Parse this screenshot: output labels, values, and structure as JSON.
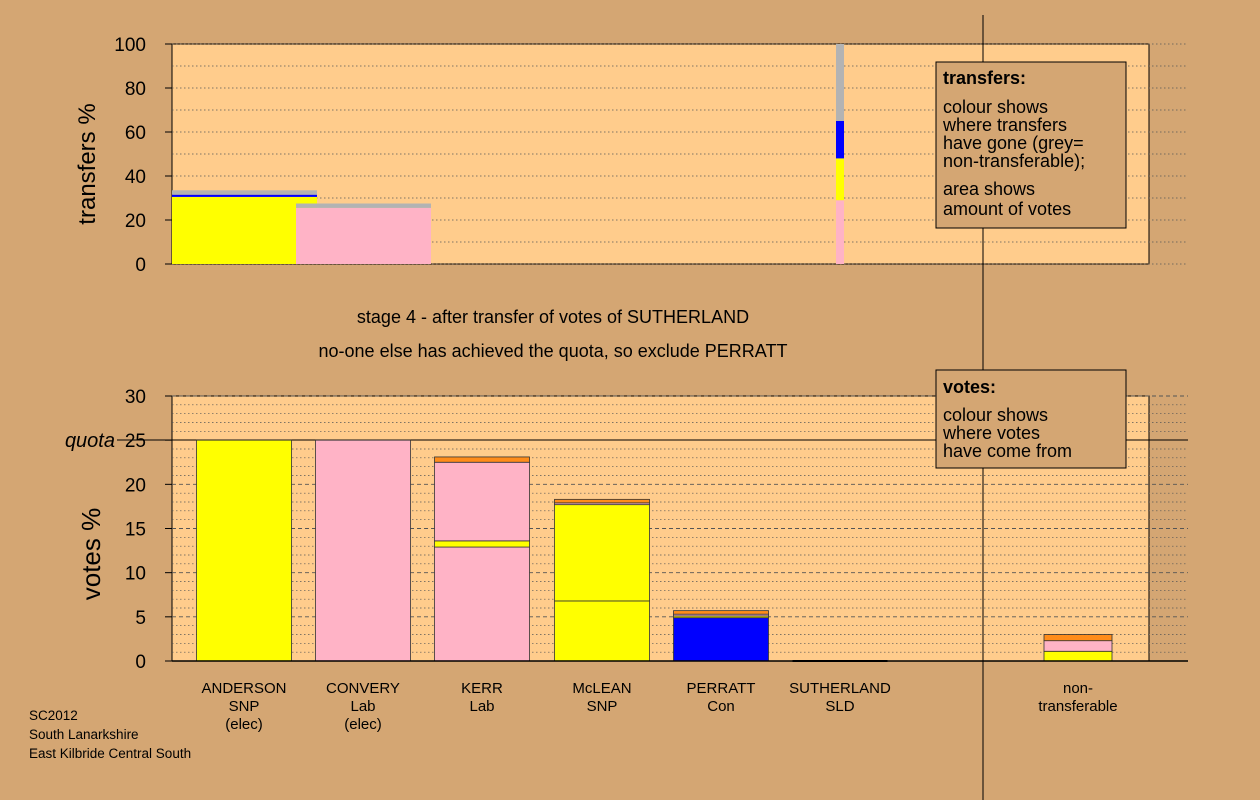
{
  "chart_data": [
    {
      "type": "bar",
      "stacked": true,
      "ylabel": "transfers %",
      "ylim": [
        0,
        100
      ],
      "yticks": [
        "0",
        "20",
        "40",
        "60",
        "80",
        "100"
      ],
      "grid": "dotted",
      "bars": [
        {
          "category": "ANDERSON",
          "width_share": 0.33,
          "segments": [
            {
              "color": "#ffff00",
              "value": 30.5
            },
            {
              "color": "#0000ff",
              "value": 1.0
            },
            {
              "color": "#b3b3b3",
              "value": 2.0
            }
          ]
        },
        {
          "category": "CONVERY",
          "width_share": 0.27,
          "segments": [
            {
              "color": "#ffb3c6",
              "value": 25.5
            },
            {
              "color": "#b3b3b3",
              "value": 2.0
            }
          ]
        },
        {
          "category": "SUTHERLAND",
          "segments": [
            {
              "color": "#ffb3c6",
              "value": 29
            },
            {
              "color": "#ffff00",
              "value": 19
            },
            {
              "color": "#0000ff",
              "value": 17
            },
            {
              "color": "#b3b3b3",
              "value": 35
            }
          ]
        }
      ],
      "legend": {
        "position": "top-right",
        "title": "transfers:",
        "lines1": [
          "colour shows",
          "where transfers",
          "have gone (grey=",
          "non-transferable);"
        ],
        "lines2": [
          "area shows",
          "amount of votes"
        ]
      }
    },
    {
      "type": "bar",
      "stacked": true,
      "ylabel": "votes %",
      "ylim": [
        0,
        30
      ],
      "yticks": [
        "0",
        "5",
        "10",
        "15",
        "20",
        "25",
        "30"
      ],
      "quota": {
        "value": 25,
        "label": "quota"
      },
      "categories": [
        {
          "lines": [
            "ANDERSON",
            "SNP",
            "(elec)"
          ]
        },
        {
          "lines": [
            "CONVERY",
            "Lab",
            "(elec)"
          ]
        },
        {
          "lines": [
            "KERR",
            "Lab"
          ]
        },
        {
          "lines": [
            "McLEAN",
            "SNP"
          ]
        },
        {
          "lines": [
            "PERRATT",
            "Con"
          ]
        },
        {
          "lines": [
            "SUTHERLAND",
            "SLD"
          ]
        },
        {
          "lines": [
            "non-",
            "transferable"
          ]
        }
      ],
      "stacks": [
        [
          {
            "color": "#ffff00",
            "value": 25
          }
        ],
        [
          {
            "color": "#ffb3c6",
            "value": 25
          }
        ],
        [
          {
            "color": "#ffb3c6",
            "value": 12.9
          },
          {
            "color": "#ffff00",
            "value": 0.7
          },
          {
            "color": "#ffb3c6",
            "value": 8.9
          },
          {
            "color": "#ff8c1a",
            "value": 0.6
          }
        ],
        [
          {
            "color": "#ffff00",
            "value": 6.8
          },
          {
            "color": "#ffff00",
            "value": 10.9
          },
          {
            "color": "#ffb3c6",
            "value": 0.2
          },
          {
            "color": "#ff8c1a",
            "value": 0.4
          }
        ],
        [
          {
            "color": "#0000ff",
            "value": 4.9
          },
          {
            "color": "#ffff00",
            "value": 0.2
          },
          {
            "color": "#ffb3c6",
            "value": 0.2
          },
          {
            "color": "#ff8c1a",
            "value": 0.4
          }
        ],
        [],
        [
          {
            "color": "#ffff00",
            "value": 1.1
          },
          {
            "color": "#ffb3c6",
            "value": 1.2
          },
          {
            "color": "#ff8c1a",
            "value": 0.7
          }
        ]
      ],
      "legend": {
        "position": "top-right",
        "title": "votes:",
        "lines": [
          "colour shows",
          "where votes",
          "have come from"
        ]
      }
    }
  ],
  "annotations": {
    "stage_line1": "stage 4 - after transfer of votes of SUTHERLAND",
    "stage_line2": "no-one else has achieved the quota, so exclude PERRATT"
  },
  "footer": [
    "SC2012",
    "South Lanarkshire",
    "East Kilbride Central South"
  ]
}
